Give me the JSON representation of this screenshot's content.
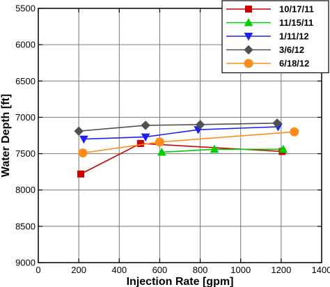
{
  "chart_data": {
    "type": "line",
    "xlabel": "Injection Rate [gpm]",
    "ylabel": "Water Depth [ft]",
    "xlim": [
      0,
      1400
    ],
    "ylim": [
      5500,
      9000
    ],
    "y_inverted": true,
    "xticks": [
      0,
      200,
      400,
      600,
      800,
      1000,
      1200,
      1400
    ],
    "yticks": [
      5500,
      6000,
      6500,
      7000,
      7500,
      8000,
      8500,
      9000
    ],
    "grid": true,
    "legend_position": "top-right",
    "series": [
      {
        "name": "10/17/11",
        "color": "#cc0000",
        "marker": "square",
        "x": [
          210,
          505,
          1205
        ],
        "y": [
          7780,
          7360,
          7470
        ]
      },
      {
        "name": "11/15/11",
        "color": "#00cc00",
        "marker": "triangle-up",
        "x": [
          610,
          870,
          1210
        ],
        "y": [
          7480,
          7440,
          7440
        ]
      },
      {
        "name": "1/11/12",
        "color": "#2020ee",
        "marker": "triangle-down",
        "x": [
          225,
          530,
          790,
          1185
        ],
        "y": [
          7300,
          7270,
          7170,
          7130
        ]
      },
      {
        "name": "3/6/12",
        "color": "#505050",
        "marker": "diamond",
        "x": [
          200,
          530,
          800,
          1180
        ],
        "y": [
          7190,
          7110,
          7100,
          7080
        ]
      },
      {
        "name": "6/18/12",
        "color": "#ff8c1a",
        "marker": "circle",
        "x": [
          220,
          600,
          1265
        ],
        "y": [
          7490,
          7340,
          7200
        ]
      }
    ]
  }
}
